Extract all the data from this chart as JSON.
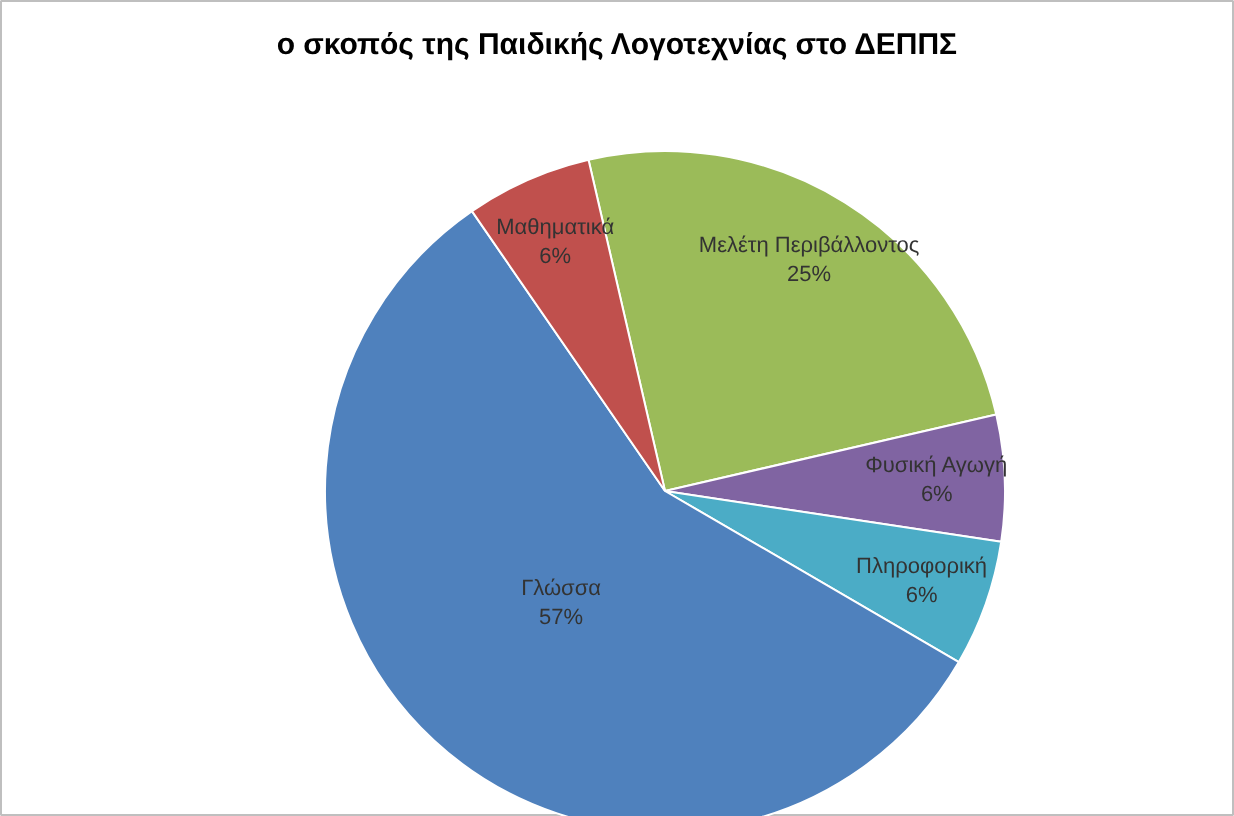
{
  "chart_data": {
    "type": "pie",
    "title": "ο σκοπός της Παιδικής Λογοτεχνίας στο ΔΕΠΠΣ",
    "categories": [
      "Μελέτη Περιβάλλοντος",
      "Φυσική Αγωγή",
      "Πληροφορική",
      "Γλώσσα",
      "Μαθηματικά"
    ],
    "values": [
      25,
      6,
      6,
      57,
      6
    ],
    "colors": [
      "#9bbb59",
      "#8064a2",
      "#4bacc6",
      "#4f81bd",
      "#c0504d"
    ],
    "value_labels": [
      "25%",
      "6%",
      "6%",
      "57%",
      "6%"
    ]
  }
}
